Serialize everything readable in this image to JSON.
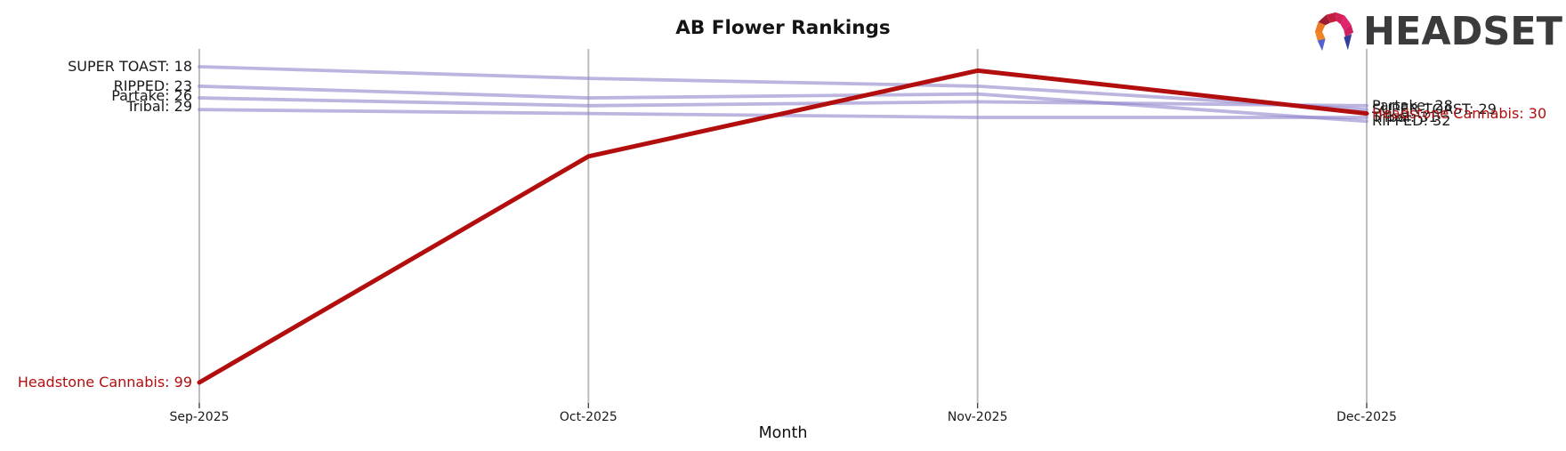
{
  "header": {
    "logo_text": "HEADSET"
  },
  "chart_data": {
    "type": "line",
    "title": "AB Flower Rankings",
    "xlabel": "Month",
    "x": [
      "Sep-2025",
      "Oct-2025",
      "Nov-2025",
      "Dec-2025"
    ],
    "y_axis": {
      "inverted": true,
      "range": [
        18,
        99
      ],
      "axis_labels_visible": false
    },
    "grid": "vertical gridline at each month only",
    "legend_position": "inline start/end labels",
    "series": [
      {
        "name": "SUPER TOAST",
        "values": [
          18,
          21,
          23,
          29
        ],
        "color": "#8f84cc",
        "highlight": false,
        "start_label": "SUPER TOAST: 18",
        "end_label": "SUPER TOAST: 29"
      },
      {
        "name": "RIPPED",
        "values": [
          23,
          26,
          25,
          32
        ],
        "color": "#8f84cc",
        "highlight": false,
        "start_label": "RIPPED: 23",
        "end_label": "RIPPED: 32"
      },
      {
        "name": "Partake",
        "values": [
          26,
          28,
          27,
          28
        ],
        "color": "#8f84cc",
        "highlight": false,
        "start_label": "Partake: 26",
        "end_label": "Partake: 28"
      },
      {
        "name": "Tribal",
        "values": [
          29,
          30,
          31,
          31
        ],
        "color": "#8f84cc",
        "highlight": false,
        "start_label": "Tribal: 29",
        "end_label": "Tribal: 31"
      },
      {
        "name": "Headstone Cannabis",
        "values": [
          99,
          41,
          19,
          30
        ],
        "color": "#b30e0e",
        "highlight": true,
        "start_label": "Headstone Cannabis: 99",
        "end_label": "Headstone Cannabis: 30"
      }
    ]
  },
  "colors": {
    "line_purple": "#8f84cc",
    "line_red": "#b30e0e",
    "gridline": "#bdbdbd",
    "tick": "#444444",
    "text": "#1a1a1a",
    "logo_text": "#3b3b3d",
    "logo_facets": [
      "#ef8426",
      "#ee7a24",
      "#a01d31",
      "#c21f3e",
      "#d62057",
      "#e0246d",
      "#d1205f",
      "#5060cf",
      "#323e9e"
    ]
  }
}
